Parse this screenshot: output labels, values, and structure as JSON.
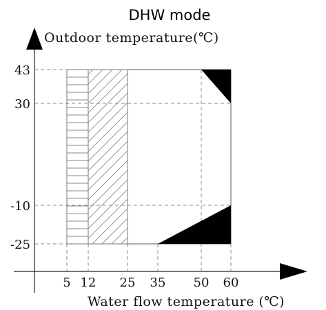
{
  "title": "DHW mode",
  "y_axis": {
    "label": "Outdoor temperature(℃)",
    "ticks": [
      "43",
      "30",
      "-10",
      "-25"
    ]
  },
  "x_axis": {
    "label": "Water flow temperature (℃)",
    "ticks": [
      "5",
      "12",
      "25",
      "35",
      "50",
      "60"
    ]
  },
  "regions": [
    {
      "name": "horizontal-hatched",
      "x": [
        5,
        12
      ],
      "y": [
        -25,
        43
      ]
    },
    {
      "name": "diagonal-hatched",
      "x": [
        12,
        25
      ],
      "y": [
        -25,
        43
      ]
    },
    {
      "name": "black-upper-triangle",
      "points": [
        [
          50,
          43
        ],
        [
          60,
          43
        ],
        [
          60,
          30
        ]
      ]
    },
    {
      "name": "black-lower-triangle",
      "points": [
        [
          35,
          -25
        ],
        [
          60,
          -25
        ],
        [
          60,
          -10
        ]
      ]
    }
  ]
}
